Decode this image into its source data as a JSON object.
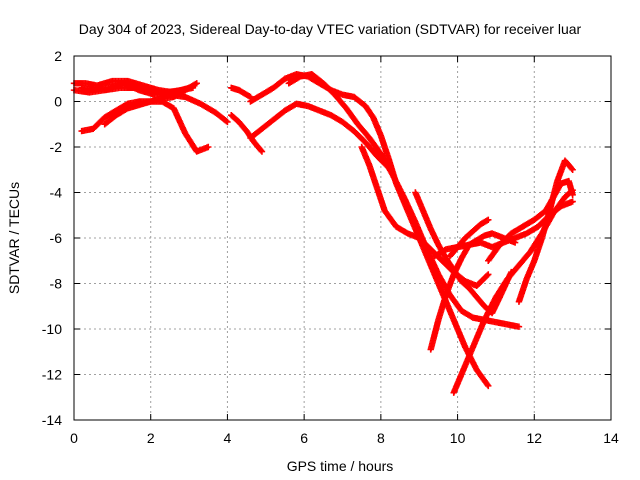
{
  "chart_data": {
    "type": "scatter",
    "title": "Day 304 of 2023, Sidereal Day-to-day VTEC variation (SDTVAR) for receiver luar",
    "xlabel": "GPS time / hours",
    "ylabel": "SDTVAR / TECUs",
    "xlim": [
      0,
      14
    ],
    "ylim": [
      -14,
      2
    ],
    "xticks": [
      0,
      2,
      4,
      6,
      8,
      10,
      12,
      14
    ],
    "yticks": [
      -14,
      -12,
      -10,
      -8,
      -6,
      -4,
      -2,
      0,
      2
    ],
    "grid": true,
    "legend": "none",
    "marker": "+",
    "color": "#ff0000",
    "series": [
      {
        "x": [
          0.0,
          0.3,
          0.6,
          1.0,
          1.4,
          1.8,
          2.2,
          2.6,
          3.0,
          3.2
        ],
        "y": [
          0.8,
          0.8,
          0.7,
          0.9,
          0.9,
          0.7,
          0.5,
          0.4,
          0.6,
          0.8
        ]
      },
      {
        "x": [
          0.0,
          0.4,
          0.8,
          1.2,
          1.6,
          2.0,
          2.4,
          2.8,
          3.1
        ],
        "y": [
          0.5,
          0.4,
          0.5,
          0.6,
          0.6,
          0.5,
          0.4,
          0.5,
          0.6
        ]
      },
      {
        "x": [
          0.2,
          0.5,
          0.9,
          1.3,
          1.7,
          2.1,
          2.5,
          2.9,
          3.3,
          3.7,
          4.0
        ],
        "y": [
          0.6,
          0.5,
          0.6,
          0.8,
          0.5,
          0.3,
          0.3,
          0.2,
          -0.1,
          -0.5,
          -0.9
        ]
      },
      {
        "x": [
          0.2,
          0.5,
          0.8,
          1.1,
          1.4,
          1.7,
          2.0,
          2.3,
          2.6,
          2.9,
          3.2,
          3.5
        ],
        "y": [
          -1.3,
          -1.2,
          -0.7,
          -0.4,
          -0.1,
          0.0,
          0.0,
          0.0,
          -0.3,
          -1.4,
          -2.2,
          -2.0
        ]
      },
      {
        "x": [
          0.8,
          1.1,
          1.4,
          1.8,
          2.2,
          2.6,
          3.0
        ],
        "y": [
          -1.0,
          -0.6,
          -0.3,
          -0.1,
          0.1,
          0.2,
          0.6
        ]
      },
      {
        "x": [
          4.1,
          4.3,
          4.6
        ],
        "y": [
          0.6,
          0.5,
          0.2
        ]
      },
      {
        "x": [
          4.1,
          4.3,
          4.5,
          4.7,
          4.9
        ],
        "y": [
          -0.6,
          -0.9,
          -1.3,
          -1.8,
          -2.2
        ]
      },
      {
        "x": [
          4.6,
          4.9,
          5.2,
          5.5,
          5.8,
          6.1,
          6.4,
          6.7,
          7.0,
          7.3,
          7.6,
          7.9,
          8.2
        ],
        "y": [
          -1.6,
          -1.2,
          -0.8,
          -0.4,
          -0.1,
          -0.2,
          -0.4,
          -0.6,
          -0.9,
          -1.3,
          -1.8,
          -2.4,
          -2.9
        ]
      },
      {
        "x": [
          4.6,
          4.9,
          5.2,
          5.5,
          5.8,
          6.1,
          6.4,
          6.7,
          7.0,
          7.3,
          7.6,
          7.8,
          8.0,
          8.2,
          8.4,
          8.7,
          9.0,
          9.3,
          9.6,
          9.9,
          10.2,
          10.5,
          10.8
        ],
        "y": [
          0.0,
          0.3,
          0.6,
          1.0,
          1.2,
          1.1,
          0.8,
          0.5,
          0.3,
          0.2,
          -0.2,
          -0.7,
          -1.5,
          -2.5,
          -3.6,
          -4.8,
          -6.0,
          -7.2,
          -8.4,
          -9.6,
          -10.8,
          -11.8,
          -12.5
        ]
      },
      {
        "x": [
          5.6,
          5.9,
          6.2,
          6.5,
          6.8,
          7.1,
          7.4,
          7.7,
          8.0,
          8.3,
          8.6,
          8.9,
          9.2,
          9.5,
          9.8,
          10.1,
          10.4,
          10.7,
          11.0,
          11.3,
          11.6
        ],
        "y": [
          0.8,
          1.1,
          1.2,
          0.8,
          0.3,
          -0.3,
          -1.0,
          -1.6,
          -2.3,
          -3.2,
          -4.2,
          -5.3,
          -6.5,
          -7.6,
          -8.5,
          -9.2,
          -9.5,
          -9.6,
          -9.7,
          -9.8,
          -9.9
        ]
      },
      {
        "x": [
          7.5,
          7.7,
          7.9,
          8.1,
          8.4,
          8.7,
          9.0,
          9.3,
          9.6,
          9.9,
          10.2,
          10.5,
          10.8
        ],
        "y": [
          -2.0,
          -2.8,
          -3.8,
          -4.8,
          -5.5,
          -5.8,
          -6.0,
          -6.5,
          -7.0,
          -7.5,
          -7.9,
          -8.1,
          -7.6
        ]
      },
      {
        "x": [
          8.9,
          9.1,
          9.3,
          9.5,
          9.7,
          9.9,
          10.1,
          10.3,
          10.5,
          10.7,
          10.9,
          11.1,
          11.4
        ],
        "y": [
          -4.0,
          -4.8,
          -5.6,
          -6.3,
          -6.9,
          -7.4,
          -7.9,
          -8.2,
          -8.6,
          -9.0,
          -9.3,
          -8.6,
          -7.5
        ]
      },
      {
        "x": [
          9.3,
          9.5,
          9.7,
          9.9,
          10.1,
          10.3,
          10.5,
          10.7,
          10.9,
          11.2,
          11.5
        ],
        "y": [
          -10.9,
          -9.6,
          -8.5,
          -7.6,
          -6.9,
          -6.3,
          -6.1,
          -5.9,
          -5.8,
          -6.0,
          -6.2
        ]
      },
      {
        "x": [
          9.4,
          9.7,
          10.0,
          10.3,
          10.6,
          10.9,
          11.2,
          11.5,
          11.8,
          12.1,
          12.4,
          12.7,
          13.0
        ],
        "y": [
          -6.8,
          -6.5,
          -6.4,
          -6.3,
          -6.2,
          -6.4,
          -6.2,
          -6.0,
          -5.8,
          -5.5,
          -5.0,
          -4.6,
          -4.4
        ]
      },
      {
        "x": [
          9.8,
          10.0,
          10.2,
          10.4,
          10.6,
          10.8
        ],
        "y": [
          -6.8,
          -6.4,
          -6.0,
          -5.7,
          -5.4,
          -5.2
        ]
      },
      {
        "x": [
          9.9,
          10.1,
          10.4,
          10.7,
          11.0,
          11.3,
          11.6,
          11.9,
          12.2,
          12.5,
          12.8,
          13.0
        ],
        "y": [
          -12.8,
          -12.0,
          -10.8,
          -9.6,
          -8.6,
          -7.8,
          -7.2,
          -6.6,
          -5.8,
          -4.9,
          -4.2,
          -3.9
        ]
      },
      {
        "x": [
          10.8,
          11.1,
          11.4,
          11.7,
          12.0,
          12.3,
          12.5,
          12.7,
          12.9,
          13.0
        ],
        "y": [
          -7.0,
          -6.3,
          -5.8,
          -5.5,
          -5.2,
          -4.8,
          -4.2,
          -3.6,
          -3.5,
          -4.1
        ]
      },
      {
        "x": [
          11.6,
          11.8,
          12.0,
          12.2,
          12.4,
          12.6,
          12.8,
          13.0
        ],
        "y": [
          -8.8,
          -7.8,
          -7.0,
          -6.0,
          -4.8,
          -3.5,
          -2.6,
          -3.0
        ]
      }
    ]
  }
}
